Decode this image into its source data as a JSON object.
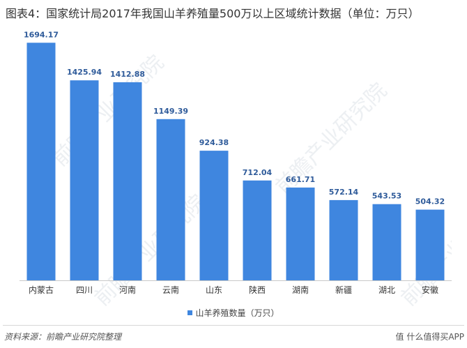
{
  "title": "图表4：国家统计局2017年我国山羊养殖量500万以上区域统计数据（单位：万只）",
  "colors": {
    "bar": "#3f86df",
    "value_label": "#2f5b9a",
    "axis": "#c8c8c8",
    "text": "#333333"
  },
  "chart_data": {
    "type": "bar",
    "categories": [
      "内蒙古",
      "四川",
      "河南",
      "云南",
      "山东",
      "陕西",
      "湖南",
      "新疆",
      "湖北",
      "安徽"
    ],
    "series": [
      {
        "name": "山羊养殖数量（万只）",
        "values": [
          1694.17,
          1425.94,
          1412.88,
          1149.39,
          924.38,
          712.04,
          661.71,
          572.14,
          543.53,
          504.32
        ]
      }
    ],
    "ylim": [
      0,
      1800
    ],
    "grid": false,
    "legend_position": "bottom",
    "show_data_labels": true
  },
  "legend": {
    "label": "山羊养殖数量（万只）"
  },
  "footer": {
    "source": "资料来源：前瞻产业研究院整理",
    "brand": "值 什么值得买APP"
  }
}
